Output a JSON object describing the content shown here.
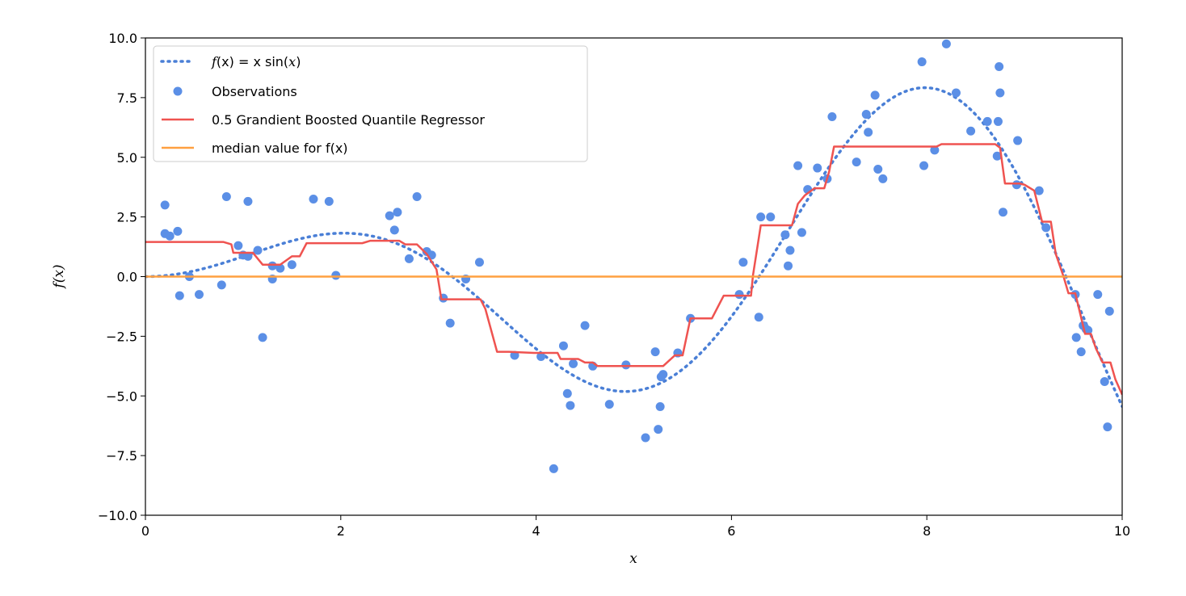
{
  "chart_data": {
    "type": "scatter",
    "xlabel": "x",
    "ylabel": "f(x)",
    "xlim": [
      0,
      10
    ],
    "ylim": [
      -10,
      10
    ],
    "xticks": [
      0,
      2,
      4,
      6,
      8,
      10
    ],
    "xtick_labels": [
      "0",
      "2",
      "4",
      "6",
      "8",
      "10"
    ],
    "yticks": [
      -10,
      -7.5,
      -5,
      -2.5,
      0,
      2.5,
      5,
      7.5,
      10
    ],
    "ytick_labels": [
      "−10.0",
      "−7.5",
      "−5.0",
      "−2.5",
      "0.0",
      "2.5",
      "5.0",
      "7.5",
      "10.0"
    ],
    "grid": false,
    "legend_position": "top-left",
    "legend": {
      "f_prefix": "f",
      "f_arg1": "(x)",
      "f_eq": " = x sin(",
      "f_arg2": "x",
      "f_close": ")",
      "observations": "Observations",
      "regressor": "0.5 Grandient Boosted Quantile Regressor",
      "median": "median value for f(x)"
    },
    "colors": {
      "function": "#4a7fd6",
      "observations": "#5b8fe6",
      "regressor": "#ef5350",
      "median": "#ffa040"
    },
    "function_curve": {
      "name": "f(x) = x sin(x)",
      "style": "dotted",
      "x_min": 0,
      "x_max": 10
    },
    "observations": {
      "name": "Observations",
      "points": [
        [
          0.2,
          1.8
        ],
        [
          0.2,
          3.0
        ],
        [
          0.25,
          1.7
        ],
        [
          0.33,
          1.9
        ],
        [
          0.35,
          -0.8
        ],
        [
          0.45,
          0.0
        ],
        [
          0.55,
          -0.75
        ],
        [
          0.78,
          -0.35
        ],
        [
          0.83,
          3.35
        ],
        [
          0.95,
          1.3
        ],
        [
          1.0,
          0.9
        ],
        [
          1.05,
          0.85
        ],
        [
          1.05,
          3.15
        ],
        [
          1.15,
          1.1
        ],
        [
          1.2,
          -2.55
        ],
        [
          1.3,
          -0.1
        ],
        [
          1.3,
          0.45
        ],
        [
          1.38,
          0.35
        ],
        [
          1.5,
          0.5
        ],
        [
          1.72,
          3.25
        ],
        [
          1.88,
          3.15
        ],
        [
          1.95,
          0.05
        ],
        [
          2.5,
          2.55
        ],
        [
          2.55,
          1.95
        ],
        [
          2.58,
          2.7
        ],
        [
          2.7,
          0.75
        ],
        [
          2.78,
          3.35
        ],
        [
          2.88,
          1.05
        ],
        [
          2.93,
          0.9
        ],
        [
          3.05,
          -0.9
        ],
        [
          3.12,
          -1.95
        ],
        [
          3.28,
          -0.1
        ],
        [
          3.42,
          0.6
        ],
        [
          3.78,
          -3.3
        ],
        [
          4.05,
          -3.35
        ],
        [
          4.18,
          -8.05
        ],
        [
          4.28,
          -2.9
        ],
        [
          4.32,
          -4.9
        ],
        [
          4.35,
          -5.4
        ],
        [
          4.38,
          -3.65
        ],
        [
          4.5,
          -2.05
        ],
        [
          4.58,
          -3.75
        ],
        [
          4.75,
          -5.35
        ],
        [
          4.92,
          -3.7
        ],
        [
          5.12,
          -6.75
        ],
        [
          5.22,
          -3.15
        ],
        [
          5.25,
          -6.4
        ],
        [
          5.27,
          -5.45
        ],
        [
          5.28,
          -4.2
        ],
        [
          5.3,
          -4.1
        ],
        [
          5.45,
          -3.2
        ],
        [
          5.58,
          -1.75
        ],
        [
          6.08,
          -0.75
        ],
        [
          6.12,
          0.6
        ],
        [
          6.28,
          -1.7
        ],
        [
          6.3,
          2.5
        ],
        [
          6.4,
          2.5
        ],
        [
          6.55,
          1.75
        ],
        [
          6.58,
          0.45
        ],
        [
          6.6,
          1.1
        ],
        [
          6.68,
          4.65
        ],
        [
          6.72,
          1.85
        ],
        [
          6.78,
          3.65
        ],
        [
          6.88,
          4.55
        ],
        [
          6.98,
          4.1
        ],
        [
          7.03,
          6.7
        ],
        [
          7.28,
          4.8
        ],
        [
          7.38,
          6.8
        ],
        [
          7.4,
          6.05
        ],
        [
          7.47,
          7.6
        ],
        [
          7.5,
          4.5
        ],
        [
          7.55,
          4.1
        ],
        [
          7.95,
          9.0
        ],
        [
          7.97,
          4.65
        ],
        [
          8.08,
          5.3
        ],
        [
          8.2,
          9.75
        ],
        [
          8.3,
          7.7
        ],
        [
          8.45,
          6.1
        ],
        [
          8.62,
          6.5
        ],
        [
          8.72,
          5.05
        ],
        [
          8.73,
          6.5
        ],
        [
          8.74,
          8.8
        ],
        [
          8.75,
          7.7
        ],
        [
          8.78,
          2.7
        ],
        [
          8.92,
          3.85
        ],
        [
          8.93,
          5.7
        ],
        [
          9.15,
          3.6
        ],
        [
          9.22,
          2.05
        ],
        [
          9.52,
          -0.75
        ],
        [
          9.53,
          -2.55
        ],
        [
          9.58,
          -3.15
        ],
        [
          9.6,
          -2.05
        ],
        [
          9.63,
          -2.2
        ],
        [
          9.65,
          -2.25
        ],
        [
          9.75,
          -0.75
        ],
        [
          9.82,
          -4.4
        ],
        [
          9.85,
          -6.3
        ],
        [
          9.87,
          -1.45
        ]
      ]
    },
    "regressor": {
      "name": "0.5 Grandient Boosted Quantile Regressor",
      "points": [
        [
          0,
          1.45
        ],
        [
          0.8,
          1.45
        ],
        [
          0.88,
          1.35
        ],
        [
          0.9,
          1.0
        ],
        [
          1.1,
          1.0
        ],
        [
          1.2,
          0.5
        ],
        [
          1.38,
          0.5
        ],
        [
          1.5,
          0.85
        ],
        [
          1.58,
          0.85
        ],
        [
          1.65,
          1.4
        ],
        [
          2.22,
          1.4
        ],
        [
          2.3,
          1.5
        ],
        [
          2.6,
          1.5
        ],
        [
          2.66,
          1.35
        ],
        [
          2.78,
          1.35
        ],
        [
          2.88,
          0.95
        ],
        [
          2.98,
          0.3
        ],
        [
          3.03,
          -0.95
        ],
        [
          3.43,
          -0.95
        ],
        [
          3.48,
          -1.35
        ],
        [
          3.6,
          -3.15
        ],
        [
          3.72,
          -3.15
        ],
        [
          3.98,
          -3.2
        ],
        [
          4.22,
          -3.2
        ],
        [
          4.25,
          -3.45
        ],
        [
          4.43,
          -3.45
        ],
        [
          4.5,
          -3.6
        ],
        [
          4.58,
          -3.6
        ],
        [
          4.63,
          -3.75
        ],
        [
          5.3,
          -3.75
        ],
        [
          5.42,
          -3.3
        ],
        [
          5.5,
          -3.3
        ],
        [
          5.58,
          -1.75
        ],
        [
          5.8,
          -1.75
        ],
        [
          5.92,
          -0.8
        ],
        [
          6.2,
          -0.8
        ],
        [
          6.22,
          0.05
        ],
        [
          6.3,
          2.15
        ],
        [
          6.62,
          2.15
        ],
        [
          6.68,
          3.05
        ],
        [
          6.75,
          3.4
        ],
        [
          6.85,
          3.7
        ],
        [
          6.95,
          3.7
        ],
        [
          7.0,
          4.4
        ],
        [
          7.05,
          5.45
        ],
        [
          8.1,
          5.45
        ],
        [
          8.15,
          5.55
        ],
        [
          8.7,
          5.55
        ],
        [
          8.75,
          5.4
        ],
        [
          8.8,
          3.9
        ],
        [
          8.95,
          3.9
        ],
        [
          9.0,
          3.85
        ],
        [
          9.1,
          3.6
        ],
        [
          9.18,
          2.3
        ],
        [
          9.27,
          2.3
        ],
        [
          9.32,
          0.95
        ],
        [
          9.4,
          0.0
        ],
        [
          9.45,
          -0.7
        ],
        [
          9.52,
          -0.7
        ],
        [
          9.57,
          -1.55
        ],
        [
          9.62,
          -2.4
        ],
        [
          9.68,
          -2.4
        ],
        [
          9.73,
          -3.0
        ],
        [
          9.8,
          -3.6
        ],
        [
          9.88,
          -3.6
        ],
        [
          9.93,
          -4.3
        ],
        [
          10.0,
          -4.95
        ]
      ]
    },
    "median_line": {
      "name": "median value for f(x)",
      "value": 0.0
    }
  }
}
